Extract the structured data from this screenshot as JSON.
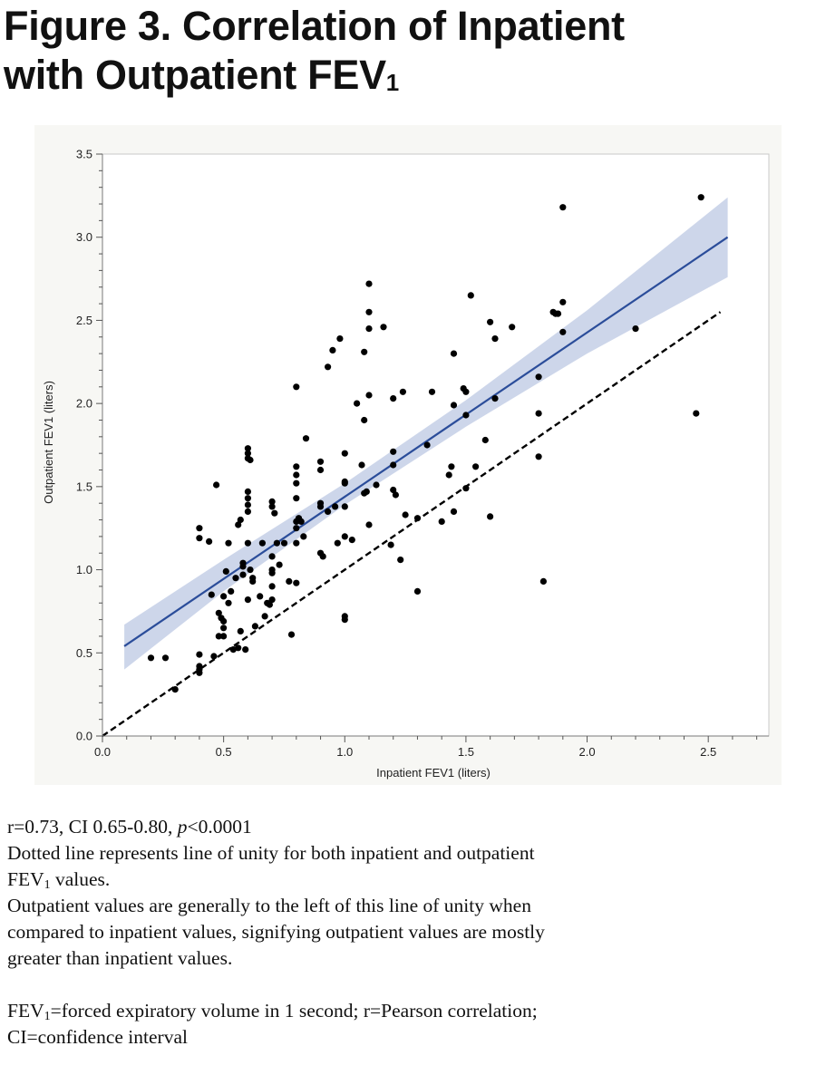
{
  "title": {
    "line1": "Figure 3. Correlation of Inpatient",
    "line2_text": "with Outpatient FEV",
    "line2_sub": "1"
  },
  "chart_data": {
    "type": "scatter",
    "xlabel": "Inpatient FEV1 (liters)",
    "ylabel": "Outpatient FEV1 (liters)",
    "xlim": [
      0.0,
      2.75
    ],
    "ylim": [
      0.0,
      3.5
    ],
    "xticks": [
      "0.0",
      "0.5",
      "1.0",
      "1.5",
      "2.0",
      "2.5"
    ],
    "yticks": [
      "0.0",
      "0.5",
      "1.0",
      "1.5",
      "2.0",
      "2.5",
      "3.0",
      "3.5"
    ],
    "grid": false,
    "fit_line": {
      "x": [
        0.09,
        2.58
      ],
      "y": [
        0.54,
        3.0
      ],
      "color": "#2b4d9a"
    },
    "confidence_band": {
      "x": [
        0.09,
        0.5,
        1.0,
        1.5,
        2.0,
        2.58
      ],
      "lower": [
        0.4,
        0.87,
        1.39,
        1.86,
        2.3,
        2.76
      ],
      "upper": [
        0.67,
        1.06,
        1.52,
        2.02,
        2.56,
        3.24
      ],
      "color": "#c8d1e8"
    },
    "unity_line": {
      "x": [
        0.0,
        2.55
      ],
      "y": [
        0.0,
        2.55
      ],
      "style": "dashed"
    },
    "points": [
      [
        0.2,
        0.47
      ],
      [
        0.26,
        0.47
      ],
      [
        0.3,
        0.28
      ],
      [
        0.4,
        0.42
      ],
      [
        0.4,
        0.4
      ],
      [
        0.4,
        0.38
      ],
      [
        0.4,
        0.49
      ],
      [
        0.4,
        1.25
      ],
      [
        0.4,
        1.19
      ],
      [
        0.44,
        1.17
      ],
      [
        0.45,
        0.85
      ],
      [
        0.46,
        0.48
      ],
      [
        0.47,
        1.51
      ],
      [
        0.48,
        0.74
      ],
      [
        0.48,
        0.6
      ],
      [
        0.49,
        0.71
      ],
      [
        0.5,
        0.65
      ],
      [
        0.5,
        0.6
      ],
      [
        0.5,
        0.84
      ],
      [
        0.5,
        0.69
      ],
      [
        0.51,
        0.99
      ],
      [
        0.52,
        0.8
      ],
      [
        0.52,
        1.16
      ],
      [
        0.53,
        0.87
      ],
      [
        0.54,
        0.52
      ],
      [
        0.55,
        0.95
      ],
      [
        0.56,
        0.53
      ],
      [
        0.56,
        1.27
      ],
      [
        0.57,
        0.63
      ],
      [
        0.57,
        1.3
      ],
      [
        0.58,
        1.02
      ],
      [
        0.58,
        0.97
      ],
      [
        0.58,
        1.04
      ],
      [
        0.59,
        0.52
      ],
      [
        0.6,
        1.73
      ],
      [
        0.6,
        1.7
      ],
      [
        0.6,
        1.67
      ],
      [
        0.6,
        1.47
      ],
      [
        0.6,
        1.43
      ],
      [
        0.6,
        1.39
      ],
      [
        0.6,
        1.35
      ],
      [
        0.6,
        1.16
      ],
      [
        0.6,
        0.82
      ],
      [
        0.61,
        1.0
      ],
      [
        0.61,
        1.66
      ],
      [
        0.62,
        0.93
      ],
      [
        0.62,
        0.95
      ],
      [
        0.63,
        0.66
      ],
      [
        0.65,
        0.84
      ],
      [
        0.66,
        1.16
      ],
      [
        0.67,
        0.72
      ],
      [
        0.68,
        0.8
      ],
      [
        0.69,
        0.79
      ],
      [
        0.7,
        1.41
      ],
      [
        0.7,
        1.38
      ],
      [
        0.7,
        1.08
      ],
      [
        0.7,
        1.0
      ],
      [
        0.7,
        0.98
      ],
      [
        0.7,
        0.9
      ],
      [
        0.7,
        0.82
      ],
      [
        0.71,
        1.34
      ],
      [
        0.72,
        1.16
      ],
      [
        0.73,
        1.03
      ],
      [
        0.75,
        1.16
      ],
      [
        0.77,
        0.93
      ],
      [
        0.78,
        0.61
      ],
      [
        0.8,
        2.1
      ],
      [
        0.8,
        1.62
      ],
      [
        0.8,
        1.57
      ],
      [
        0.8,
        1.52
      ],
      [
        0.8,
        1.43
      ],
      [
        0.8,
        1.29
      ],
      [
        0.8,
        1.25
      ],
      [
        0.8,
        1.16
      ],
      [
        0.8,
        0.92
      ],
      [
        0.81,
        1.31
      ],
      [
        0.82,
        1.29
      ],
      [
        0.83,
        1.2
      ],
      [
        0.84,
        1.79
      ],
      [
        0.9,
        1.65
      ],
      [
        0.9,
        1.6
      ],
      [
        0.9,
        1.4
      ],
      [
        0.9,
        1.38
      ],
      [
        0.9,
        1.1
      ],
      [
        0.91,
        1.08
      ],
      [
        0.93,
        1.35
      ],
      [
        0.93,
        2.22
      ],
      [
        0.95,
        2.32
      ],
      [
        0.96,
        1.38
      ],
      [
        0.97,
        1.16
      ],
      [
        0.98,
        2.39
      ],
      [
        1.0,
        1.7
      ],
      [
        1.0,
        1.53
      ],
      [
        1.0,
        1.52
      ],
      [
        1.0,
        1.38
      ],
      [
        1.0,
        1.2
      ],
      [
        1.0,
        0.72
      ],
      [
        1.0,
        0.7
      ],
      [
        1.03,
        1.18
      ],
      [
        1.05,
        2.0
      ],
      [
        1.07,
        1.63
      ],
      [
        1.08,
        2.31
      ],
      [
        1.08,
        1.9
      ],
      [
        1.08,
        1.46
      ],
      [
        1.09,
        1.47
      ],
      [
        1.1,
        2.72
      ],
      [
        1.1,
        2.55
      ],
      [
        1.1,
        2.45
      ],
      [
        1.1,
        2.05
      ],
      [
        1.1,
        1.27
      ],
      [
        1.13,
        1.51
      ],
      [
        1.16,
        2.46
      ],
      [
        1.19,
        1.15
      ],
      [
        1.2,
        2.03
      ],
      [
        1.2,
        1.71
      ],
      [
        1.2,
        1.63
      ],
      [
        1.2,
        1.48
      ],
      [
        1.21,
        1.45
      ],
      [
        1.23,
        1.06
      ],
      [
        1.24,
        2.07
      ],
      [
        1.25,
        1.33
      ],
      [
        1.3,
        1.31
      ],
      [
        1.3,
        0.87
      ],
      [
        1.34,
        1.75
      ],
      [
        1.36,
        2.07
      ],
      [
        1.4,
        1.29
      ],
      [
        1.43,
        1.57
      ],
      [
        1.44,
        1.62
      ],
      [
        1.45,
        2.3
      ],
      [
        1.45,
        1.99
      ],
      [
        1.45,
        1.35
      ],
      [
        1.49,
        2.09
      ],
      [
        1.5,
        2.07
      ],
      [
        1.5,
        1.93
      ],
      [
        1.5,
        1.49
      ],
      [
        1.52,
        2.65
      ],
      [
        1.54,
        1.62
      ],
      [
        1.58,
        1.78
      ],
      [
        1.6,
        2.49
      ],
      [
        1.6,
        1.32
      ],
      [
        1.62,
        2.39
      ],
      [
        1.62,
        2.03
      ],
      [
        1.69,
        2.46
      ],
      [
        1.8,
        2.16
      ],
      [
        1.8,
        1.94
      ],
      [
        1.8,
        1.68
      ],
      [
        1.82,
        0.93
      ],
      [
        1.86,
        2.55
      ],
      [
        1.87,
        2.54
      ],
      [
        1.88,
        2.54
      ],
      [
        1.9,
        3.18
      ],
      [
        1.9,
        2.61
      ],
      [
        1.9,
        2.43
      ],
      [
        2.2,
        2.45
      ],
      [
        2.45,
        1.94
      ],
      [
        2.47,
        3.24
      ]
    ]
  },
  "notes": {
    "line1_a": "r=0.73, CI 0.65-0.80, ",
    "line1_p": "p",
    "line1_b": "<0.0001",
    "line2": "Dotted line represents line of unity for both inpatient and outpatient",
    "line3_a": "FEV",
    "line3_sub": "1",
    "line3_b": " values.",
    "line4": "Outpatient values are generally to the left of this line of unity when",
    "line5": "compared to inpatient values, signifying outpatient values are mostly",
    "line6": "greater than inpatient values.",
    "line7_a": "FEV",
    "line7_sub": "1",
    "line7_b": "=forced expiratory volume in 1 second; r=Pearson correlation;",
    "line8": "CI=confidence interval"
  }
}
